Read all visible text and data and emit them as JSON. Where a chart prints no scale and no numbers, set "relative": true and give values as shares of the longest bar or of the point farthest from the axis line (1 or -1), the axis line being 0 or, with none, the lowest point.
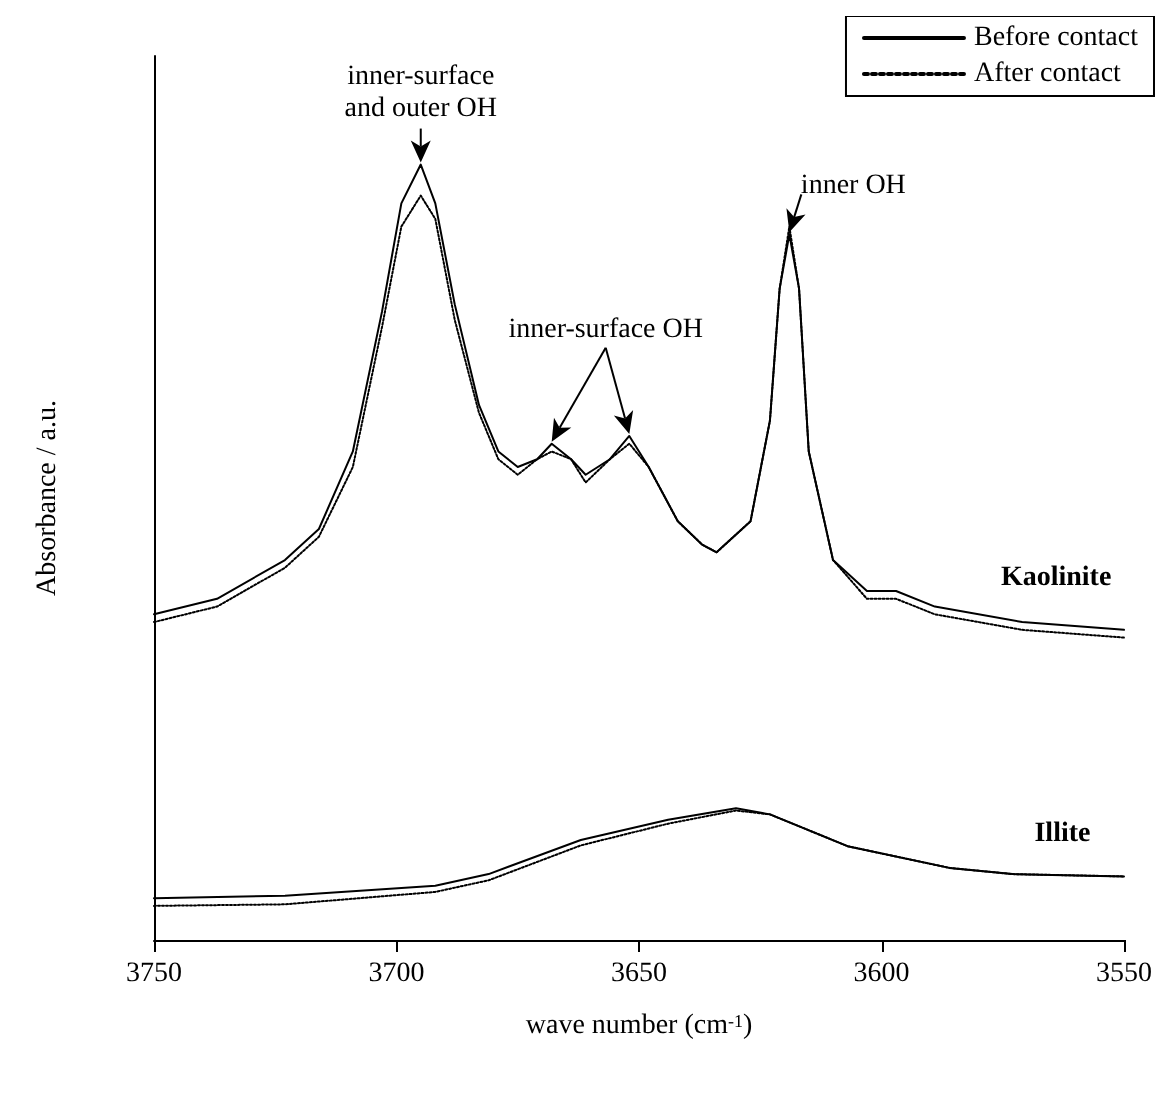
{
  "chart_data": {
    "type": "line",
    "relative": true,
    "xlabel": "wave number (cm$^{-1}$)",
    "ylabel": "Absorbance / a.u.",
    "xlim": [
      3750,
      3550
    ],
    "xticks": [
      3750,
      3700,
      3650,
      3600,
      3550
    ],
    "legend": "top right",
    "grid": false,
    "x": [
      3750,
      3737,
      3723,
      3716,
      3709,
      3703,
      3699,
      3695,
      3692,
      3688,
      3683,
      3679,
      3675,
      3671,
      3668,
      3664,
      3661,
      3656,
      3652,
      3648,
      3642,
      3637,
      3634,
      3627,
      3623,
      3621,
      3619,
      3617,
      3615,
      3610,
      3603,
      3597,
      3589,
      3571,
      3550
    ],
    "series": [
      {
        "name": "Before contact",
        "color": "#000000",
        "line_style": "solid",
        "values": [
          0.42,
          0.44,
          0.49,
          0.53,
          0.63,
          0.81,
          0.95,
          1,
          0.95,
          0.82,
          0.69,
          0.63,
          0.61,
          0.62,
          0.64,
          0.62,
          0.6,
          0.62,
          0.65,
          0.61,
          0.54,
          0.51,
          0.5,
          0.54,
          0.67,
          0.84,
          0.91,
          0.84,
          0.63,
          0.49,
          0.45,
          0.45,
          0.43,
          0.41,
          0.4
        ]
      },
      {
        "name": "After contact",
        "color": "#000000",
        "line_style": "dotted",
        "values": [
          0.41,
          0.43,
          0.48,
          0.52,
          0.61,
          0.79,
          0.92,
          0.96,
          0.93,
          0.8,
          0.68,
          0.62,
          0.6,
          0.62,
          0.63,
          0.62,
          0.59,
          0.62,
          0.64,
          0.61,
          0.54,
          0.51,
          0.5,
          0.54,
          0.67,
          0.84,
          0.92,
          0.84,
          0.63,
          0.49,
          0.44,
          0.44,
          0.42,
          0.4,
          0.39
        ]
      },
      {
        "color": "#000000",
        "line_style": "solid",
        "x": [
          3750,
          3723,
          3692,
          3681,
          3662,
          3644,
          3630,
          3623,
          3607,
          3586,
          3573,
          3550
        ],
        "values": [
          0.054,
          0.057,
          0.07,
          0.085,
          0.129,
          0.155,
          0.17,
          0.162,
          0.121,
          0.093,
          0.085,
          0.082
        ]
      },
      {
        "color": "#000000",
        "line_style": "dotted",
        "x": [
          3750,
          3723,
          3692,
          3681,
          3662,
          3644,
          3630,
          3623,
          3607,
          3586,
          3573,
          3550
        ],
        "values": [
          0.044,
          0.046,
          0.062,
          0.077,
          0.122,
          0.15,
          0.167,
          0.162,
          0.121,
          0.093,
          0.085,
          0.082
        ]
      }
    ],
    "annotations": [
      {
        "text": "inner-surface\nand outer OH",
        "x": 3695,
        "y": 1
      },
      {
        "text": "inner-surface OH",
        "x": 3668,
        "y": 0.64
      },
      {
        "text": "inner OH",
        "x": 3619,
        "y": 0.91
      },
      {
        "text": "Kaolinite",
        "x": 3571,
        "y": 0.41
      },
      {
        "text": "Illite",
        "x": 3573,
        "y": 0.085
      }
    ]
  }
}
